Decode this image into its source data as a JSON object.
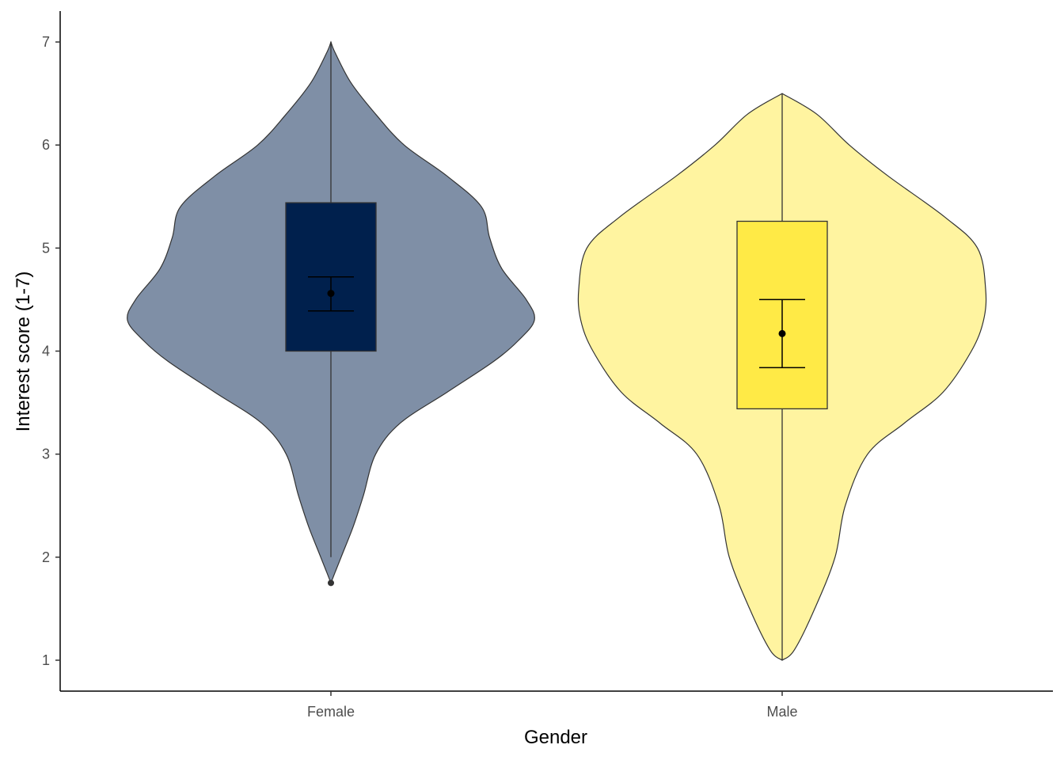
{
  "chart_data": {
    "type": "violin",
    "title": "",
    "xlabel": "Gender",
    "ylabel": "Interest score (1-7)",
    "ylim": [
      0.7,
      7.3
    ],
    "yticks": [
      1,
      2,
      3,
      4,
      5,
      6,
      7
    ],
    "categories": [
      "Female",
      "Male"
    ],
    "grid": false,
    "legend": "none",
    "groups": [
      {
        "category": "Female",
        "violin_color": "#7f8fa6",
        "box_color": "#00204d",
        "density": [
          [
            1.75,
            0.0
          ],
          [
            1.85,
            0.02
          ],
          [
            2.0,
            0.05
          ],
          [
            2.3,
            0.11
          ],
          [
            2.6,
            0.16
          ],
          [
            3.0,
            0.22
          ],
          [
            3.3,
            0.34
          ],
          [
            3.6,
            0.57
          ],
          [
            3.9,
            0.8
          ],
          [
            4.1,
            0.92
          ],
          [
            4.3,
            1.0
          ],
          [
            4.5,
            0.96
          ],
          [
            4.8,
            0.84
          ],
          [
            5.1,
            0.78
          ],
          [
            5.4,
            0.74
          ],
          [
            5.7,
            0.57
          ],
          [
            6.0,
            0.36
          ],
          [
            6.3,
            0.22
          ],
          [
            6.6,
            0.1
          ],
          [
            6.9,
            0.02
          ],
          [
            7.0,
            0.0
          ]
        ],
        "box": {
          "min": 2.0,
          "q1": 4.0,
          "median": 4.56,
          "q3": 5.44,
          "max": 7.0
        },
        "outliers": [
          1.75
        ],
        "mean": 4.56,
        "ci": [
          4.39,
          4.72
        ]
      },
      {
        "category": "Male",
        "violin_color": "#fff4a0",
        "box_color": "#ffea46",
        "density": [
          [
            1.0,
            0.0
          ],
          [
            1.1,
            0.06
          ],
          [
            1.5,
            0.16
          ],
          [
            2.0,
            0.26
          ],
          [
            2.5,
            0.31
          ],
          [
            3.0,
            0.42
          ],
          [
            3.3,
            0.6
          ],
          [
            3.6,
            0.79
          ],
          [
            4.0,
            0.93
          ],
          [
            4.3,
            0.99
          ],
          [
            4.6,
            1.0
          ],
          [
            5.0,
            0.96
          ],
          [
            5.3,
            0.8
          ],
          [
            5.7,
            0.52
          ],
          [
            6.0,
            0.33
          ],
          [
            6.3,
            0.17
          ],
          [
            6.5,
            0.0
          ]
        ],
        "box": {
          "min": 1.0,
          "q1": 3.44,
          "median": 4.17,
          "q3": 5.26,
          "max": 6.5
        },
        "outliers": [],
        "mean": 4.17,
        "ci": [
          3.84,
          4.5
        ]
      }
    ]
  }
}
